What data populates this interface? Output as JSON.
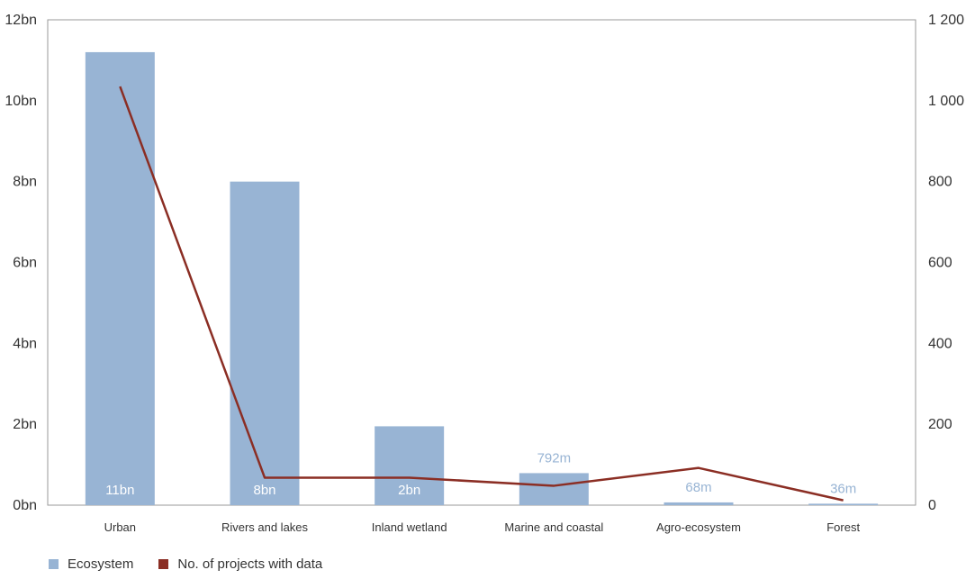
{
  "chart_data": {
    "type": "bar",
    "categories": [
      "Urban",
      "Rivers and lakes",
      "Inland wetland",
      "Marine and coastal",
      "Agro-ecosystem",
      "Forest"
    ],
    "series": [
      {
        "name": "Ecosystem",
        "type": "bar",
        "axis": "left",
        "values": [
          11200000000,
          8000000000,
          1950000000,
          792000000,
          68000000,
          36000000
        ],
        "data_labels": [
          "11bn",
          "8bn",
          "2bn",
          "792m",
          "68m",
          "36m"
        ],
        "color": "#98b4d4"
      },
      {
        "name": "No. of projects with data",
        "type": "line",
        "axis": "right",
        "values": [
          1035,
          68,
          68,
          48,
          92,
          12
        ],
        "color": "#8b2e24"
      }
    ],
    "y_left": {
      "range": [
        0,
        12000000000
      ],
      "ticks": [
        0,
        2000000000,
        4000000000,
        6000000000,
        8000000000,
        10000000000,
        12000000000
      ],
      "tick_labels": [
        "0bn",
        "2bn",
        "4bn",
        "6bn",
        "8bn",
        "10bn",
        "12bn"
      ]
    },
    "y_right": {
      "range": [
        0,
        1200
      ],
      "ticks": [
        0,
        200,
        400,
        600,
        800,
        1000,
        1200
      ],
      "tick_labels": [
        "0",
        "200",
        "400",
        "600",
        "800",
        "1 000",
        "1 200"
      ]
    },
    "grid": false,
    "legend_position": "bottom-left"
  }
}
